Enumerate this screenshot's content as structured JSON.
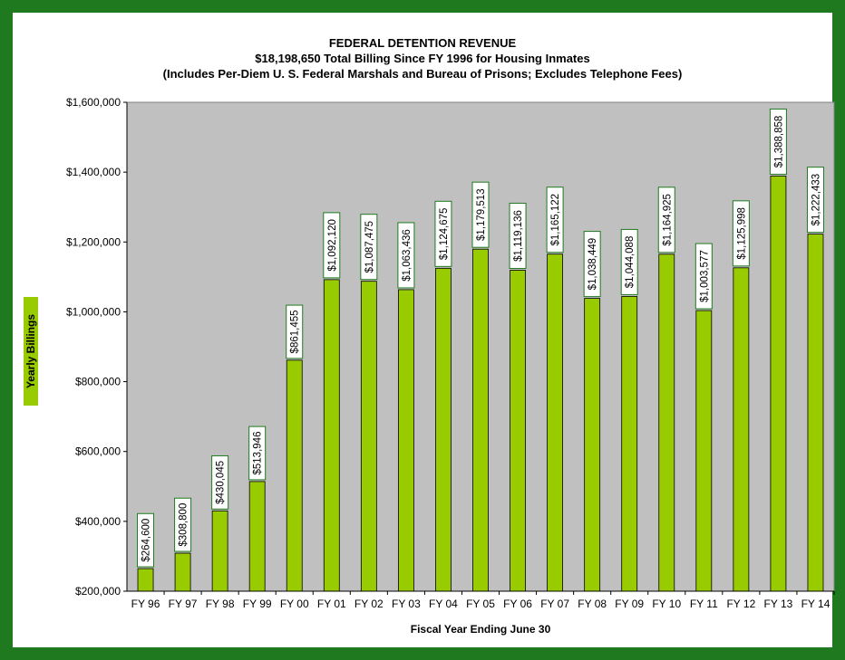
{
  "chart_data": {
    "type": "bar",
    "title_lines": [
      "FEDERAL DETENTION REVENUE",
      "$18,198,650 Total Billing Since FY 1996 for Housing Inmates",
      "(Includes Per-Diem U. S. Federal Marshals and Bureau of Prisons; Excludes Telephone Fees)"
    ],
    "xlabel": "Fiscal Year Ending June 30",
    "ylabel": "Yearly Billings",
    "ylim": [
      200000,
      1600000
    ],
    "y_ticks": [
      200000,
      400000,
      600000,
      800000,
      1000000,
      1200000,
      1400000,
      1600000
    ],
    "y_tick_labels": [
      "$200,000",
      "$400,000",
      "$600,000",
      "$800,000",
      "$1,000,000",
      "$1,200,000",
      "$1,400,000",
      "$1,600,000"
    ],
    "categories": [
      "FY 96",
      "FY 97",
      "FY 98",
      "FY 99",
      "FY 00",
      "FY 01",
      "FY 02",
      "FY 03",
      "FY 04",
      "FY 05",
      "FY 06",
      "FY 07",
      "FY 08",
      "FY 09",
      "FY 10",
      "FY 11",
      "FY 12",
      "FY 13",
      "FY 14"
    ],
    "values": [
      264600,
      308800,
      430045,
      513946,
      861455,
      1092120,
      1087475,
      1063436,
      1124675,
      1179513,
      1119136,
      1165122,
      1038449,
      1044088,
      1164925,
      1003577,
      1125998,
      1388858,
      1222433
    ],
    "data_labels": [
      "$264,600",
      "$308,800",
      "$430,045",
      "$513,946",
      "$861,455",
      "$1,092,120",
      "$1,087,475",
      "$1,063,436",
      "$1,124,675",
      "$1,179,513",
      "$1,119,136",
      "$1,165,122",
      "$1,038,449",
      "$1,044,088",
      "$1,164,925",
      "$1,003,577",
      "$1,125,998",
      "$1,388,858",
      "$1,222,433"
    ],
    "grid": false,
    "colors": {
      "bar": "#99cc00",
      "plot_background": "#c0c0c0",
      "frame": "#1f7a1f",
      "label_border": "#1f7a1f"
    }
  }
}
